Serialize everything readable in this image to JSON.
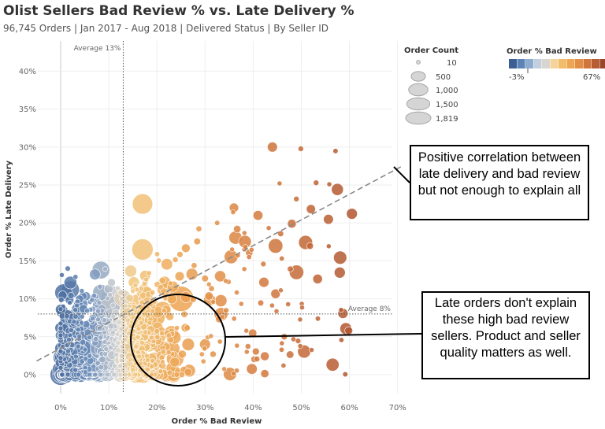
{
  "chart_data": {
    "type": "scatter",
    "title": "Olist Sellers Bad Review  % vs. Late Delivery %",
    "subtitle": "96,745  Orders | Jan 2017 - Aug 2018 | Delivered Status | By Seller ID",
    "xlabel": "Order % Bad Review",
    "ylabel": "Order % Late Delivery",
    "xlim": [
      -0.05,
      0.72
    ],
    "ylim": [
      -0.02,
      0.43
    ],
    "x_ticks": [
      "0%",
      "10%",
      "20%",
      "30%",
      "40%",
      "50%",
      "60%",
      "70%"
    ],
    "y_ticks": [
      "0%",
      "5%",
      "10%",
      "15%",
      "20%",
      "25%",
      "30%",
      "35%",
      "40%"
    ],
    "grid": true,
    "reference_lines": [
      {
        "axis": "x",
        "value": 0.13,
        "label": "Average 13%"
      },
      {
        "axis": "y",
        "value": 0.08,
        "label": "Average 8%"
      }
    ],
    "trend_line": {
      "from": [
        -0.05,
        0.018
      ],
      "to": [
        0.71,
        0.275
      ]
    },
    "size_legend": {
      "title": "Order Count",
      "entries": [
        "10",
        "500",
        "1,000",
        "1,500",
        "1,819"
      ],
      "values": [
        10,
        500,
        1000,
        1500,
        1819
      ]
    },
    "color_legend": {
      "title": "Order % Bad Review",
      "min_label": "-3%",
      "max_label": "67%",
      "colors": [
        "#3b5f93",
        "#5d84b4",
        "#8eaccf",
        "#c3cfdc",
        "#d9d6d2",
        "#f5d39a",
        "#f2bd6b",
        "#eca552",
        "#e28e46",
        "#d0763a",
        "#b75d33",
        "#9a4429"
      ]
    },
    "highlighted_points": [
      {
        "x": 0.0,
        "y": 0.0,
        "count": 600
      },
      {
        "x": 0.17,
        "y": 0.085,
        "count": 1819
      },
      {
        "x": 0.25,
        "y": 0.1,
        "count": 900
      },
      {
        "x": 0.17,
        "y": 0.225,
        "count": 550
      },
      {
        "x": 0.17,
        "y": 0.165,
        "count": 600
      },
      {
        "x": 0.49,
        "y": 0.135,
        "count": 250
      },
      {
        "x": 0.605,
        "y": 0.212,
        "count": 120
      },
      {
        "x": 0.44,
        "y": 0.3,
        "count": 100
      },
      {
        "x": 0.41,
        "y": 0.21,
        "count": 90
      },
      {
        "x": 0.36,
        "y": 0.22,
        "count": 80
      },
      {
        "x": 0.3,
        "y": 0.04,
        "count": 120
      },
      {
        "x": 0.23,
        "y": 0.055,
        "count": 250
      },
      {
        "x": 0.2,
        "y": 0.05,
        "count": 400
      },
      {
        "x": 0.06,
        "y": 0.06,
        "count": 500
      },
      {
        "x": 0.1,
        "y": 0.09,
        "count": 700
      },
      {
        "x": 0.11,
        "y": 0.1,
        "count": 900
      },
      {
        "x": 0.04,
        "y": 0.03,
        "count": 500
      }
    ],
    "colors": {
      "low": "#3b5f93",
      "mid": "#d7d5d2",
      "high": "#a5492b"
    }
  },
  "callouts": {
    "top": "Positive correlation between late delivery and bad review but not enough to explain all",
    "bottom": "Late orders don't explain these high bad review sellers. Product and seller quality matters as well."
  }
}
